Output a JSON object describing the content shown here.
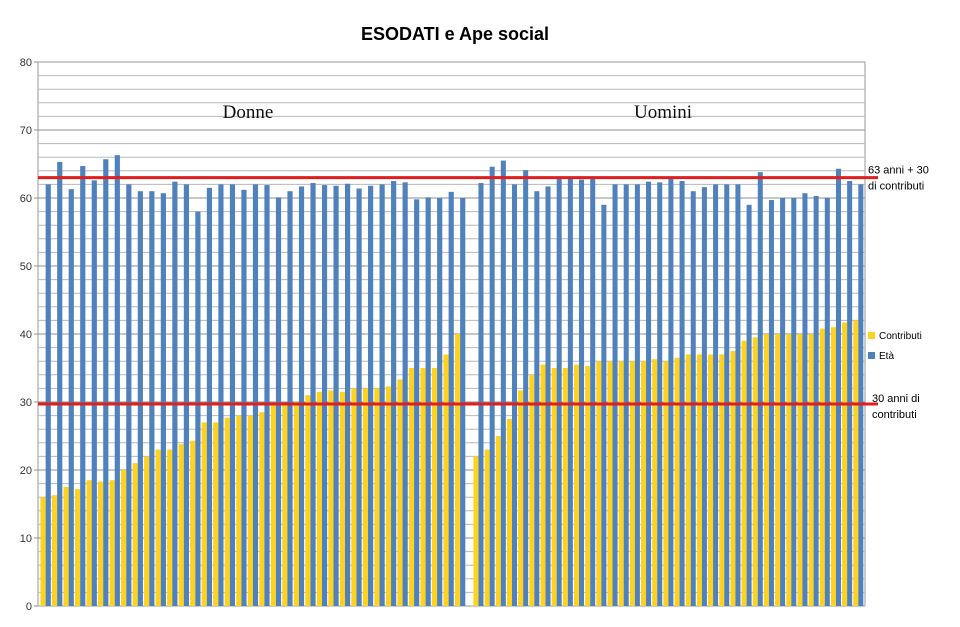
{
  "chart_data": {
    "type": "bar",
    "title": "ESODATI e Ape social",
    "ylim": [
      0,
      80
    ],
    "yticks": [
      0,
      10,
      20,
      30,
      40,
      50,
      60,
      70,
      80
    ],
    "grid": true,
    "legend_position": "right",
    "series": [
      {
        "name": "Contributi",
        "color": "#ffd21f",
        "groups": [
          [
            16,
            16.3,
            17.5,
            17.2,
            18.5,
            18.3,
            18.5,
            20,
            21,
            22,
            23,
            23,
            23.8,
            24.3,
            27,
            27,
            27.7,
            28,
            28,
            28.5,
            29.5,
            29.5,
            30,
            31,
            31.5,
            31.7,
            31.5,
            32,
            32,
            32,
            32.3,
            33.3,
            35,
            35,
            35,
            37,
            40
          ],
          [
            22,
            23,
            25,
            27.5,
            31.7,
            34,
            35.5,
            35,
            35,
            35.5,
            35.3,
            36,
            36,
            36,
            36,
            36,
            36.3,
            36,
            36.5,
            37,
            37,
            37,
            37,
            37.5,
            39,
            39.5,
            40,
            40,
            40,
            40,
            40,
            40.8,
            41,
            41.7,
            42
          ]
        ]
      },
      {
        "name": "Età",
        "color": "#4f81bd",
        "groups": [
          [
            62,
            65.3,
            61.3,
            64.7,
            62.6,
            65.7,
            66.3,
            62,
            61,
            61,
            60.7,
            62.4,
            62,
            58,
            61.5,
            62,
            62,
            61.2,
            62,
            61.9,
            60.1,
            61,
            61.7,
            62.2,
            61.9,
            61.8,
            62.1,
            61.4,
            61.8,
            62,
            62.5,
            62.3,
            59.8,
            60.1,
            60,
            60.9,
            60
          ],
          [
            62.2,
            64.6,
            65.5,
            62,
            64.1,
            61,
            61.7,
            63,
            63,
            62.7,
            63,
            59,
            62,
            62,
            62,
            62.4,
            62.3,
            63,
            62.5,
            61,
            61.6,
            62,
            62,
            62,
            59,
            63.8,
            59.7,
            60,
            60,
            60.7,
            60.3,
            60,
            64.3,
            62.5,
            62
          ]
        ]
      }
    ],
    "annotations": {
      "line_63": {
        "y": 63,
        "label_line1": "63 anni + 30",
        "label_line2": "di contributi"
      },
      "line_30": {
        "y": 29.7,
        "label_line1": "30 anni di",
        "label_line2": "contributi"
      },
      "group_labels": [
        "Donne",
        "Uomini"
      ]
    }
  }
}
